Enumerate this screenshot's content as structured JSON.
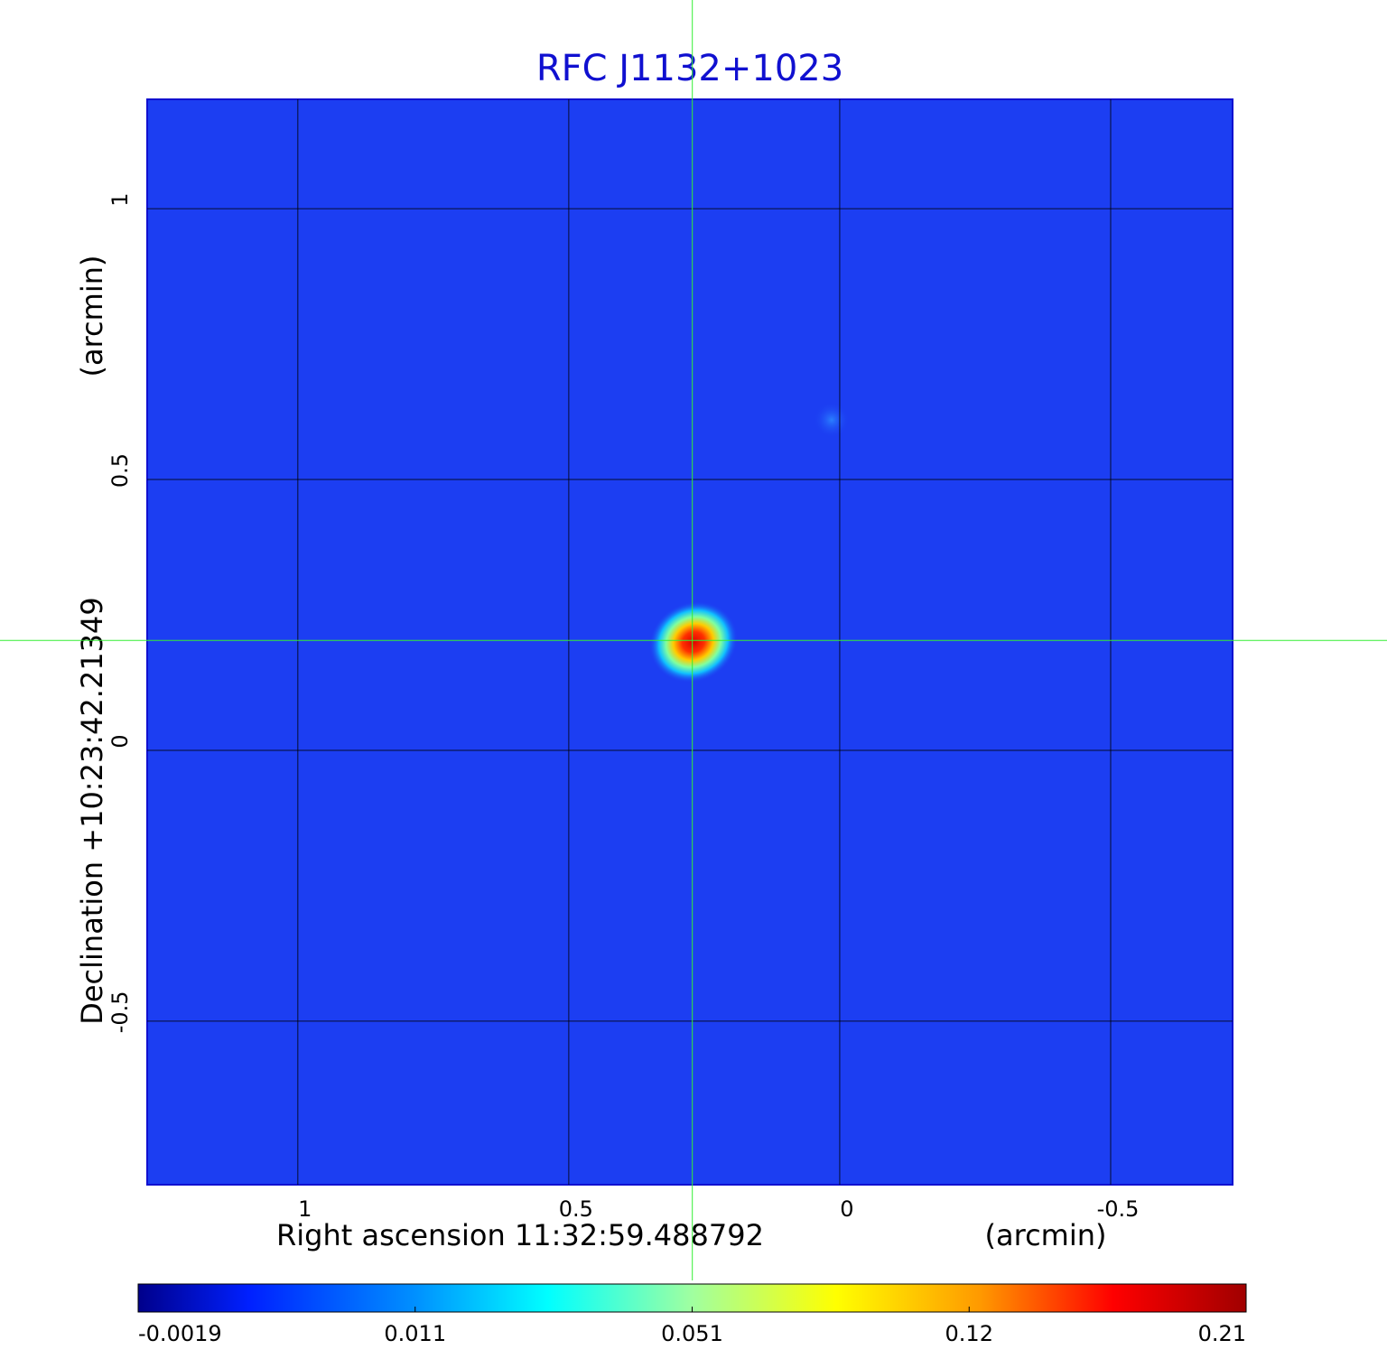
{
  "chart_data": {
    "type": "image",
    "title": "RFC J1132+1023",
    "xlabel": "Right ascension  11:32:59.488792",
    "xunit": "(arcmin)",
    "ylabel": "Declination  +10:23:42.21349",
    "yunit": "(arcmin)",
    "xlim": [
      1.278,
      -0.725
    ],
    "ylim": [
      -0.802,
      1.202
    ],
    "xticks": [
      1.0,
      0.5,
      0.0,
      -0.5
    ],
    "yticks": [
      1.0,
      0.5,
      0.0,
      -0.5
    ],
    "grid": true,
    "background_color": "#1c3ef2",
    "crosshair": {
      "x": 0.272,
      "y": 0.203,
      "color": "#33ee33"
    },
    "sources": [
      {
        "x": 0.27,
        "y": 0.2,
        "peak": 0.21
      },
      {
        "x": 0.015,
        "y": 0.61,
        "peak": 0.008
      }
    ],
    "colorbar": {
      "ticks": [
        -0.0019,
        0.011,
        0.051,
        0.12,
        0.21
      ]
    }
  }
}
